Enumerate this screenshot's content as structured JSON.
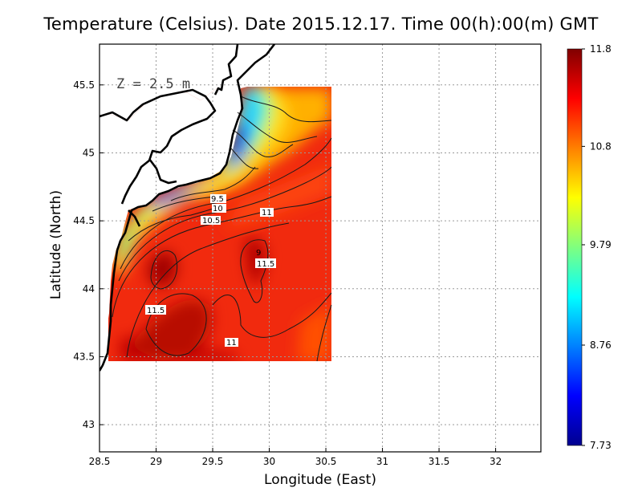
{
  "title": "Temperature (Celsius). Date 2015.12.17. Time 00(h):00(m) GMT",
  "xlabel": "Longitude (East)",
  "ylabel": "Latitude (North)",
  "depth_label": "Z = 2.5 m",
  "map": {
    "lon_range": [
      28.5,
      32.4
    ],
    "lat_range": [
      42.8,
      45.8
    ],
    "lon_ticks": [
      "28.5",
      "29",
      "29.5",
      "30",
      "30.5",
      "31",
      "31.5",
      "32"
    ],
    "lat_ticks": [
      "43",
      "43.5",
      "44",
      "44.5",
      "45",
      "45.5"
    ],
    "grid": true
  },
  "colorbar": {
    "min": 7.73,
    "max": 11.8,
    "tick_labels": [
      "11.8",
      "10.8",
      "9.79",
      "8.76",
      "7.73"
    ],
    "colormap": "jet"
  },
  "contour_labels": [
    "9.5",
    "10",
    "10.5",
    "11",
    "9",
    "11.5",
    "11.5",
    "11"
  ]
}
